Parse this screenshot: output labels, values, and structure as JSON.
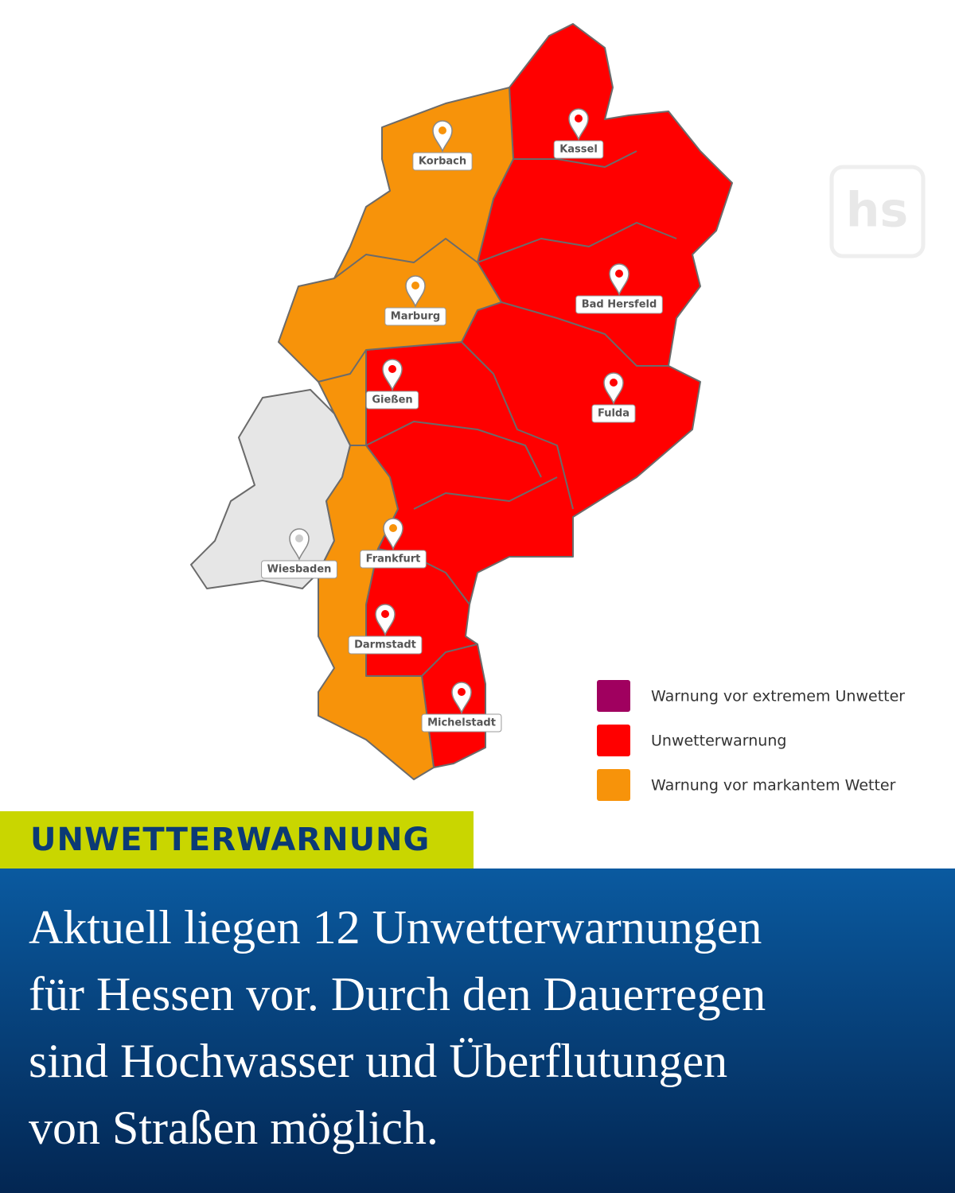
{
  "logo": "hs",
  "map": {
    "cities": [
      {
        "label": "Korbach"
      },
      {
        "label": "Kassel"
      },
      {
        "label": "Marburg"
      },
      {
        "label": "Bad Hersfeld"
      },
      {
        "label": "Gießen"
      },
      {
        "label": "Fulda"
      },
      {
        "label": "Wiesbaden"
      },
      {
        "label": "Frankfurt"
      },
      {
        "label": "Darmstadt"
      },
      {
        "label": "Michelstadt"
      }
    ]
  },
  "legend": [
    {
      "label": "Warnung vor extremem Unwetter",
      "color": "#a0005f"
    },
    {
      "label": "Unwetterwarnung",
      "color": "#ff0000"
    },
    {
      "label": "Warnung vor markantem Wetter",
      "color": "#f7930a"
    }
  ],
  "banner": {
    "tag": "UNWETTERWARNUNG",
    "lines": [
      "Aktuell liegen 12 Unwetterwarnungen",
      "für Hessen vor. Durch den Dauerregen",
      "sind Hochwasser und Überflutungen",
      "von Straßen möglich."
    ]
  }
}
